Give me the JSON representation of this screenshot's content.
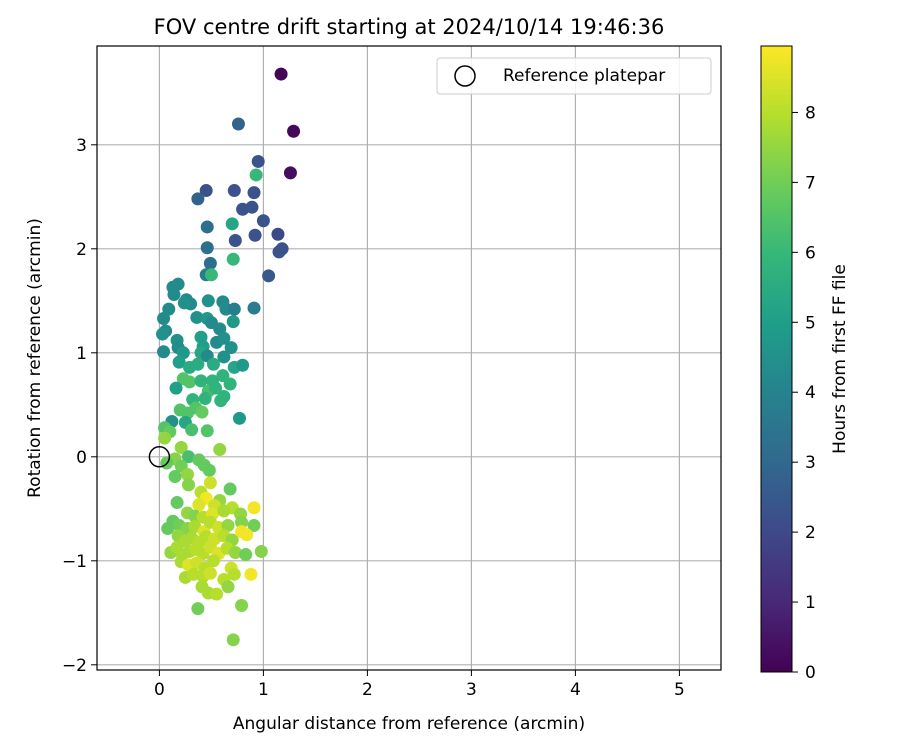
{
  "chart_data": {
    "type": "scatter",
    "title": "FOV centre drift starting at 2024/10/14 19:46:36",
    "xlabel": "Angular distance from reference (arcmin)",
    "ylabel": "Rotation from reference (arcmin)",
    "xlim": [
      -0.6,
      5.4
    ],
    "ylim": [
      -2.05,
      3.95
    ],
    "xticks": [
      0,
      1,
      2,
      3,
      4,
      5
    ],
    "yticks": [
      -2,
      -1,
      0,
      1,
      2,
      3
    ],
    "grid": true,
    "legend": {
      "position": "top-right",
      "entries": [
        "Reference platepar"
      ]
    },
    "reference_point": {
      "x": 0,
      "y": 0
    },
    "colorbar": {
      "label": "Hours from first FF file",
      "range": [
        0,
        8.95
      ],
      "ticks": [
        0,
        1,
        2,
        3,
        4,
        5,
        6,
        7,
        8
      ],
      "colormap": "viridis"
    },
    "points": [
      [
        1.17,
        3.68,
        0.1
      ],
      [
        1.29,
        3.13,
        0.2
      ],
      [
        1.26,
        2.73,
        0.3
      ],
      [
        0.76,
        3.2,
        2.8
      ],
      [
        0.95,
        2.84,
        2.3
      ],
      [
        0.91,
        2.54,
        2.3
      ],
      [
        0.45,
        2.56,
        2.3
      ],
      [
        0.72,
        2.56,
        2.3
      ],
      [
        0.37,
        2.48,
        2.8
      ],
      [
        0.8,
        2.38,
        2.3
      ],
      [
        0.89,
        2.4,
        2.3
      ],
      [
        0.46,
        2.21,
        3.3
      ],
      [
        1.0,
        2.27,
        2.3
      ],
      [
        0.7,
        2.24,
        5.3
      ],
      [
        1.14,
        2.14,
        2.0
      ],
      [
        0.92,
        2.13,
        2.3
      ],
      [
        0.73,
        2.08,
        2.3
      ],
      [
        1.18,
        2.0,
        2.3
      ],
      [
        1.15,
        1.97,
        2.3
      ],
      [
        0.46,
        2.01,
        3.3
      ],
      [
        0.71,
        1.9,
        6.0
      ],
      [
        0.49,
        1.86,
        3.3
      ],
      [
        0.45,
        1.75,
        3.8
      ],
      [
        0.5,
        1.75,
        6.0
      ],
      [
        1.05,
        1.74,
        2.5
      ],
      [
        0.93,
        2.71,
        6.0
      ],
      [
        0.18,
        1.66,
        4.3
      ],
      [
        0.13,
        1.63,
        4.3
      ],
      [
        0.14,
        1.56,
        4.3
      ],
      [
        0.26,
        1.51,
        4.3
      ],
      [
        0.3,
        1.47,
        4.3
      ],
      [
        0.24,
        1.48,
        4.5
      ],
      [
        0.47,
        1.5,
        4.5
      ],
      [
        0.61,
        1.49,
        4.3
      ],
      [
        0.64,
        1.42,
        4.3
      ],
      [
        0.72,
        1.42,
        3.8
      ],
      [
        0.09,
        1.42,
        4.3
      ],
      [
        0.04,
        1.33,
        4.3
      ],
      [
        0.06,
        1.21,
        4.3
      ],
      [
        0.36,
        1.34,
        4.5
      ],
      [
        0.46,
        1.33,
        4.8
      ],
      [
        0.5,
        1.29,
        4.3
      ],
      [
        0.58,
        1.23,
        4.3
      ],
      [
        0.71,
        1.3,
        4.8
      ],
      [
        0.91,
        1.43,
        3.8
      ],
      [
        0.03,
        1.18,
        4.5
      ],
      [
        0.17,
        1.12,
        4.5
      ],
      [
        0.18,
        1.05,
        4.3
      ],
      [
        0.23,
        1.0,
        4.8
      ],
      [
        0.4,
        1.15,
        5.0
      ],
      [
        0.42,
        1.06,
        5.0
      ],
      [
        0.55,
        1.1,
        4.3
      ],
      [
        0.62,
        1.14,
        4.5
      ],
      [
        0.69,
        1.05,
        4.5
      ],
      [
        0.04,
        1.01,
        4.3
      ],
      [
        0.4,
        1.0,
        5.3
      ],
      [
        0.46,
        0.97,
        4.3
      ],
      [
        0.62,
        0.96,
        4.5
      ],
      [
        0.19,
        0.91,
        5.0
      ],
      [
        0.29,
        0.86,
        5.5
      ],
      [
        0.37,
        0.89,
        5.5
      ],
      [
        0.52,
        0.89,
        5.5
      ],
      [
        0.72,
        0.86,
        5.3
      ],
      [
        0.8,
        0.88,
        4.8
      ],
      [
        0.23,
        0.75,
        6.5
      ],
      [
        0.29,
        0.72,
        6.5
      ],
      [
        0.4,
        0.73,
        5.8
      ],
      [
        0.51,
        0.73,
        5.8
      ],
      [
        0.61,
        0.78,
        5.8
      ],
      [
        0.68,
        0.7,
        5.8
      ],
      [
        0.16,
        0.66,
        5.0
      ],
      [
        0.47,
        0.63,
        6.3
      ],
      [
        0.54,
        0.66,
        5.8
      ],
      [
        0.62,
        0.58,
        5.8
      ],
      [
        0.32,
        0.55,
        5.8
      ],
      [
        0.44,
        0.56,
        5.8
      ],
      [
        0.59,
        0.54,
        5.8
      ],
      [
        0.2,
        0.45,
        6.5
      ],
      [
        0.27,
        0.42,
        6.5
      ],
      [
        0.35,
        0.47,
        6.5
      ],
      [
        0.41,
        0.43,
        6.8
      ],
      [
        0.77,
        0.37,
        4.8
      ],
      [
        0.12,
        0.34,
        4.5
      ],
      [
        0.25,
        0.33,
        5.3
      ],
      [
        0.31,
        0.26,
        6.3
      ],
      [
        0.46,
        0.25,
        6.5
      ],
      [
        0.05,
        0.28,
        6.5
      ],
      [
        0.1,
        0.24,
        6.8
      ],
      [
        0.05,
        0.18,
        7.5
      ],
      [
        0.21,
        0.09,
        7.5
      ],
      [
        0.58,
        0.07,
        7.5
      ],
      [
        0.15,
        -0.02,
        7.3
      ],
      [
        0.28,
        0.0,
        6.3
      ],
      [
        0.07,
        -0.06,
        6.8
      ],
      [
        0.21,
        -0.09,
        7.0
      ],
      [
        0.38,
        -0.03,
        6.8
      ],
      [
        0.43,
        -0.08,
        6.8
      ],
      [
        0.27,
        -0.17,
        7.5
      ],
      [
        0.15,
        -0.19,
        6.8
      ],
      [
        0.48,
        -0.13,
        6.8
      ],
      [
        0.49,
        -0.25,
        8.3
      ],
      [
        0.28,
        -0.27,
        7.3
      ],
      [
        0.4,
        -0.34,
        8.0
      ],
      [
        0.68,
        -0.31,
        6.8
      ],
      [
        0.45,
        -0.4,
        8.8
      ],
      [
        0.58,
        -0.42,
        7.5
      ],
      [
        0.17,
        -0.44,
        6.8
      ],
      [
        0.38,
        -0.46,
        8.5
      ],
      [
        0.53,
        -0.47,
        8.3
      ],
      [
        0.7,
        -0.49,
        8.0
      ],
      [
        0.27,
        -0.54,
        7.5
      ],
      [
        0.34,
        -0.57,
        7.3
      ],
      [
        0.42,
        -0.58,
        8.0
      ],
      [
        0.51,
        -0.55,
        8.5
      ],
      [
        0.62,
        -0.52,
        7.8
      ],
      [
        0.78,
        -0.55,
        7.5
      ],
      [
        0.91,
        -0.49,
        8.8
      ],
      [
        0.13,
        -0.62,
        6.8
      ],
      [
        0.19,
        -0.66,
        7.0
      ],
      [
        0.27,
        -0.69,
        7.3
      ],
      [
        0.34,
        -0.67,
        7.8
      ],
      [
        0.43,
        -0.72,
        8.5
      ],
      [
        0.49,
        -0.63,
        8.0
      ],
      [
        0.57,
        -0.68,
        8.3
      ],
      [
        0.66,
        -0.66,
        7.5
      ],
      [
        0.79,
        -0.63,
        7.3
      ],
      [
        0.91,
        -0.66,
        7.0
      ],
      [
        0.08,
        -0.69,
        6.8
      ],
      [
        0.18,
        -0.76,
        7.5
      ],
      [
        0.25,
        -0.81,
        7.8
      ],
      [
        0.31,
        -0.78,
        7.8
      ],
      [
        0.38,
        -0.82,
        8.0
      ],
      [
        0.45,
        -0.77,
        8.0
      ],
      [
        0.53,
        -0.79,
        8.3
      ],
      [
        0.62,
        -0.76,
        8.0
      ],
      [
        0.7,
        -0.8,
        7.5
      ],
      [
        0.79,
        -0.72,
        8.8
      ],
      [
        0.84,
        -0.75,
        8.8
      ],
      [
        0.11,
        -0.92,
        7.5
      ],
      [
        0.17,
        -0.87,
        7.8
      ],
      [
        0.22,
        -0.94,
        7.8
      ],
      [
        0.29,
        -0.91,
        7.8
      ],
      [
        0.35,
        -0.89,
        8.0
      ],
      [
        0.42,
        -0.93,
        8.0
      ],
      [
        0.49,
        -0.87,
        8.3
      ],
      [
        0.57,
        -0.93,
        8.5
      ],
      [
        0.65,
        -0.88,
        8.0
      ],
      [
        0.73,
        -0.92,
        7.5
      ],
      [
        0.83,
        -0.94,
        7.0
      ],
      [
        0.98,
        -0.91,
        7.3
      ],
      [
        0.21,
        -1.01,
        7.8
      ],
      [
        0.28,
        -1.04,
        8.5
      ],
      [
        0.36,
        -1.02,
        8.3
      ],
      [
        0.44,
        -1.07,
        8.0
      ],
      [
        0.52,
        -1.0,
        8.0
      ],
      [
        0.69,
        -1.07,
        8.3
      ],
      [
        0.88,
        -1.13,
        8.8
      ],
      [
        0.25,
        -1.16,
        7.8
      ],
      [
        0.33,
        -1.13,
        8.0
      ],
      [
        0.42,
        -1.15,
        8.0
      ],
      [
        0.49,
        -1.12,
        8.3
      ],
      [
        0.62,
        -1.18,
        8.0
      ],
      [
        0.72,
        -1.13,
        8.0
      ],
      [
        0.41,
        -1.25,
        7.8
      ],
      [
        0.47,
        -1.31,
        7.8
      ],
      [
        0.55,
        -1.32,
        8.0
      ],
      [
        0.66,
        -1.25,
        7.5
      ],
      [
        0.37,
        -1.46,
        7.0
      ],
      [
        0.79,
        -1.43,
        7.3
      ],
      [
        0.71,
        -1.76,
        7.3
      ]
    ]
  }
}
